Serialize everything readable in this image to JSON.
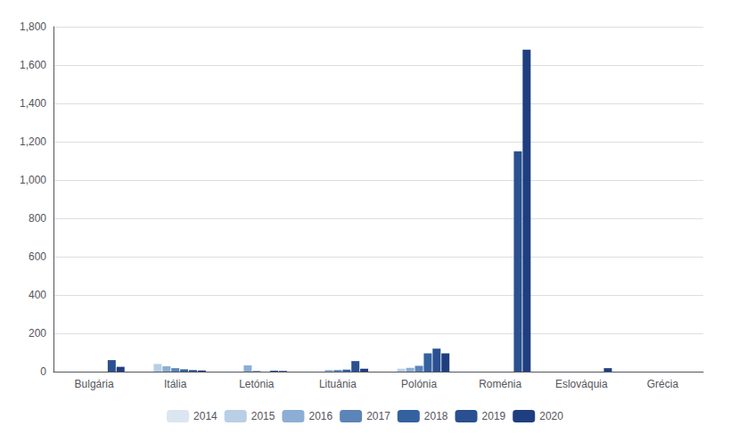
{
  "chart_data": {
    "type": "bar",
    "categories": [
      "Bulgária",
      "Itália",
      "Letónia",
      "Lituânia",
      "Polónia",
      "Roménia",
      "Eslováquia",
      "Grécia"
    ],
    "series": [
      {
        "name": "2014",
        "color": "#dce6f1",
        "values": [
          0,
          0,
          0,
          0,
          0,
          0,
          0,
          0
        ]
      },
      {
        "name": "2015",
        "color": "#b8cfe5",
        "values": [
          0,
          40,
          0,
          0,
          15,
          0,
          0,
          0
        ]
      },
      {
        "name": "2016",
        "color": "#8daed4",
        "values": [
          0,
          28,
          32,
          8,
          20,
          0,
          0,
          0
        ]
      },
      {
        "name": "2017",
        "color": "#5b84b8",
        "values": [
          0,
          18,
          4,
          8,
          30,
          0,
          0,
          0
        ]
      },
      {
        "name": "2018",
        "color": "#3461a0",
        "values": [
          0,
          12,
          0,
          10,
          95,
          0,
          0,
          0
        ]
      },
      {
        "name": "2019",
        "color": "#2a5090",
        "values": [
          60,
          8,
          5,
          55,
          120,
          1150,
          0,
          0
        ]
      },
      {
        "name": "2020",
        "color": "#1f3e80",
        "values": [
          25,
          6,
          3,
          15,
          95,
          1680,
          18,
          0
        ]
      }
    ],
    "ylim": [
      0,
      1800
    ],
    "yticks": [
      0,
      200,
      400,
      600,
      800,
      1000,
      1200,
      1400,
      1600,
      1800
    ],
    "grid": true,
    "legend": "bottom"
  }
}
